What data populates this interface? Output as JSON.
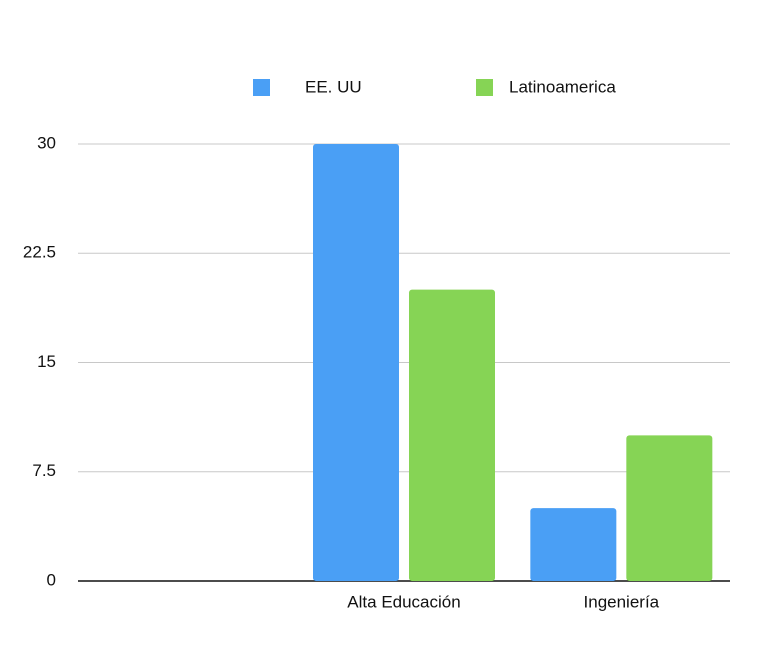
{
  "chart_data": {
    "type": "bar",
    "categories": [
      null,
      "Alta Educación",
      "Ingeniería"
    ],
    "series": [
      {
        "name": "EE. UU",
        "color": "#4a9ff5",
        "values": [
          null,
          30,
          5
        ]
      },
      {
        "name": "Latinoamerica",
        "color": "#86d455",
        "values": [
          null,
          20,
          10
        ]
      }
    ],
    "ylim": [
      0,
      30
    ],
    "yticks": [
      0,
      7.5,
      15,
      22.5,
      30
    ],
    "grid": true,
    "legend": "top"
  }
}
